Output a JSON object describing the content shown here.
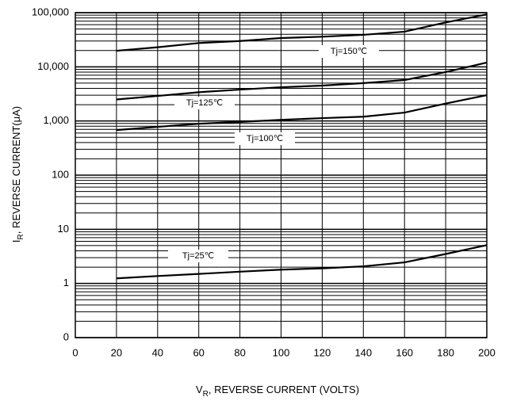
{
  "chart_data": {
    "type": "line",
    "xlabel_parts": [
      "V",
      "R",
      ", REVERSE CURRENT (VOLTS)"
    ],
    "ylabel_parts": [
      "I",
      "R",
      ", REVERSE CURRENT(μA)"
    ],
    "x": [
      20,
      40,
      60,
      80,
      100,
      120,
      140,
      160,
      180,
      200
    ],
    "series": [
      {
        "name": "Tj=150℃",
        "color": "#000000",
        "values": [
          19800,
          23000,
          27500,
          30000,
          34000,
          36000,
          39000,
          44600,
          66000,
          93000
        ]
      },
      {
        "name": "Tj=125℃",
        "color": "#000000",
        "values": [
          2500,
          2900,
          3400,
          3800,
          4200,
          4500,
          5000,
          5700,
          8000,
          12000
        ]
      },
      {
        "name": "Tj=100℃",
        "color": "#000000",
        "values": [
          680,
          780,
          890,
          960,
          1050,
          1130,
          1200,
          1430,
          2100,
          3000
        ]
      },
      {
        "name": "Tj=25℃",
        "color": "#000000",
        "values": [
          1.24,
          1.37,
          1.5,
          1.65,
          1.8,
          1.9,
          2.07,
          2.45,
          3.5,
          5.1
        ]
      }
    ],
    "xlim": [
      0,
      200
    ],
    "xticks": [
      0,
      20,
      40,
      60,
      80,
      100,
      120,
      140,
      160,
      180,
      200
    ],
    "ylim": [
      0.1,
      100000
    ],
    "ylog": true,
    "yticks": [
      {
        "value": 0.1,
        "label": "0"
      },
      1,
      10,
      100,
      {
        "value": 1000,
        "label": "1,000"
      },
      {
        "value": 10000,
        "label": "10,000"
      },
      {
        "value": 100000,
        "label": "100,000"
      }
    ],
    "grid": true,
    "minor_grid": true
  }
}
